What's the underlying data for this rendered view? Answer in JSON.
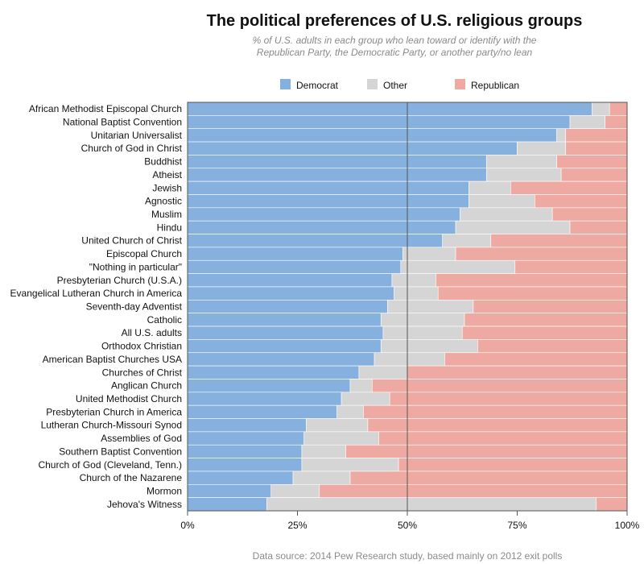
{
  "chart_data": {
    "type": "bar",
    "orientation": "horizontal",
    "stacked": "percent",
    "title": "The political preferences of U.S. religious groups",
    "subtitle": [
      "% of U.S. adults in each group who lean toward or identify with the",
      "Republican Party, the Democratic Party, or another party/no lean"
    ],
    "source": "Data source: 2014 Pew Research study, based mainly on 2012 exit polls",
    "xlim": [
      0,
      100
    ],
    "x_ticks": [
      0,
      25,
      50,
      75,
      100
    ],
    "x_tick_labels": [
      "0%",
      "25%",
      "50%",
      "75%",
      "100%"
    ],
    "reference_line": 50,
    "legend_position": "top",
    "colors": {
      "Democrat": "#86b0de",
      "Other": "#d5d5d5",
      "Republican": "#eeaaa2"
    },
    "categories": [
      "African Methodist Episcopal Church",
      "National Baptist Convention",
      "Unitarian Universalist",
      "Church of God in Christ",
      "Buddhist",
      "Atheist",
      "Jewish",
      "Agnostic",
      "Muslim",
      "Hindu",
      "United Church of Christ",
      "Episcopal Church",
      "\"Nothing in particular\"",
      "Presbyterian Church (U.S.A.)",
      "Evangelical Lutheran Church in America",
      "Seventh-day Adventist",
      "Catholic",
      "All U.S. adults",
      "Orthodox Christian",
      "American Baptist Churches USA",
      "Churches of Christ",
      "Anglican Church",
      "United Methodist Church",
      "Presbyterian Church in America",
      "Lutheran Church-Missouri Synod",
      "Assemblies of God",
      "Southern Baptist Convention",
      "Church of God (Cleveland, Tenn.)",
      "Church of the Nazarene",
      "Mormon",
      "Jehova's Witness"
    ],
    "series": [
      {
        "name": "Democrat",
        "values": [
          92,
          87,
          84,
          75,
          68,
          68,
          64,
          64,
          62,
          61,
          58,
          49,
          48.5,
          46.5,
          47,
          45.5,
          44,
          44.5,
          44,
          42.5,
          39,
          37,
          35,
          34,
          27,
          26.5,
          26,
          26,
          24,
          19,
          18
        ]
      },
      {
        "name": "Other",
        "values": [
          4,
          8,
          2,
          11,
          16,
          17,
          9.5,
          15,
          21,
          26,
          11,
          12,
          26,
          10,
          10,
          19.5,
          19,
          18,
          22,
          16,
          11,
          5,
          11,
          6,
          14,
          17,
          10,
          22,
          13,
          11,
          75
        ]
      },
      {
        "name": "Republican",
        "values": [
          4,
          5,
          14,
          14,
          16,
          15,
          26.5,
          21,
          17,
          13,
          31,
          39,
          25.5,
          43.5,
          43,
          35,
          37,
          37.5,
          34,
          41.5,
          50,
          58,
          54,
          60,
          59,
          56.5,
          64,
          52,
          63,
          70,
          7
        ]
      }
    ]
  }
}
